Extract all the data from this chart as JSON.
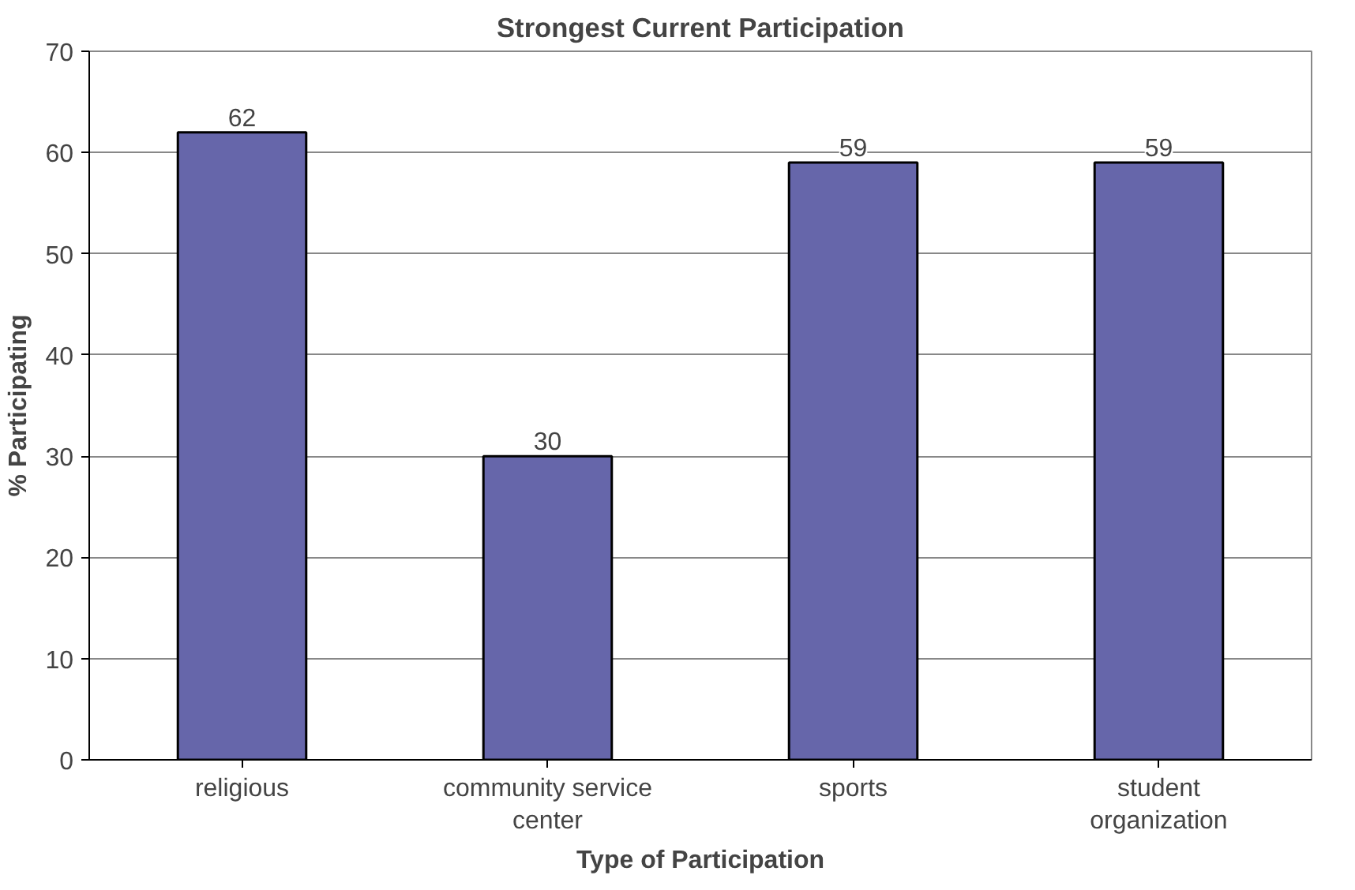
{
  "chart_data": {
    "type": "bar",
    "title": "Strongest Current Participation",
    "xlabel": "Type of Participation",
    "ylabel": "% Participating",
    "categories": [
      "religious",
      "community service center",
      "sports",
      "student organization"
    ],
    "values": [
      62,
      30,
      59,
      59
    ],
    "color": "#6666aa",
    "ylim": [
      0,
      70
    ],
    "yticks": [
      0,
      10,
      20,
      30,
      40,
      50,
      60,
      70
    ],
    "grid": "y",
    "data_labels": true
  }
}
